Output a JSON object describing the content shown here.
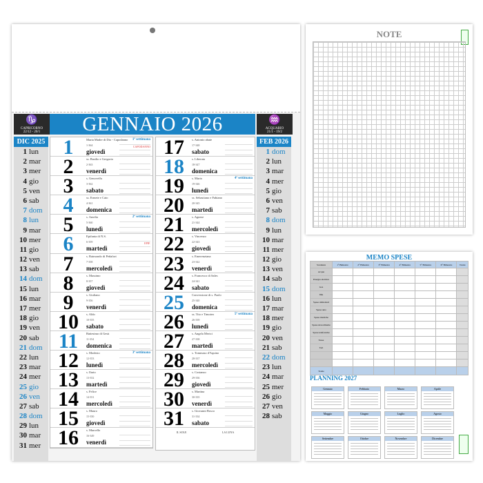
{
  "calendar": {
    "title": "GENNAIO 2026",
    "accent": "#1b84c6",
    "zodiac_left": {
      "sign": "CAPRICORNO",
      "dates": "22/12 - 20/1",
      "icon": "capricorn-icon"
    },
    "zodiac_right": {
      "sign": "ACQUARIO",
      "dates": "21/1 - 19/2",
      "icon": "aquarius-icon"
    },
    "prev_month": {
      "label": "DIC 2025",
      "days": [
        [
          "1",
          "lun",
          false
        ],
        [
          "2",
          "mar",
          false
        ],
        [
          "3",
          "mer",
          false
        ],
        [
          "4",
          "gio",
          false
        ],
        [
          "5",
          "ven",
          false
        ],
        [
          "6",
          "sab",
          false
        ],
        [
          "7",
          "dom",
          true
        ],
        [
          "8",
          "lun",
          true
        ],
        [
          "9",
          "mar",
          false
        ],
        [
          "10",
          "mer",
          false
        ],
        [
          "11",
          "gio",
          false
        ],
        [
          "12",
          "ven",
          false
        ],
        [
          "13",
          "sab",
          false
        ],
        [
          "14",
          "dom",
          true
        ],
        [
          "15",
          "lun",
          false
        ],
        [
          "16",
          "mar",
          false
        ],
        [
          "17",
          "mer",
          false
        ],
        [
          "18",
          "gio",
          false
        ],
        [
          "19",
          "ven",
          false
        ],
        [
          "20",
          "sab",
          false
        ],
        [
          "21",
          "dom",
          true
        ],
        [
          "22",
          "lun",
          false
        ],
        [
          "23",
          "mar",
          false
        ],
        [
          "24",
          "mer",
          false
        ],
        [
          "25",
          "gio",
          true
        ],
        [
          "26",
          "ven",
          true
        ],
        [
          "27",
          "sab",
          false
        ],
        [
          "28",
          "dom",
          true
        ],
        [
          "29",
          "lun",
          false
        ],
        [
          "30",
          "mar",
          false
        ],
        [
          "31",
          "mer",
          false
        ]
      ]
    },
    "next_month": {
      "label": "FEB 2026",
      "days": [
        [
          "1",
          "dom",
          true
        ],
        [
          "2",
          "lun",
          false
        ],
        [
          "3",
          "mar",
          false
        ],
        [
          "4",
          "mer",
          false
        ],
        [
          "5",
          "gio",
          false
        ],
        [
          "6",
          "ven",
          false
        ],
        [
          "7",
          "sab",
          false
        ],
        [
          "8",
          "dom",
          true
        ],
        [
          "9",
          "lun",
          false
        ],
        [
          "10",
          "mar",
          false
        ],
        [
          "11",
          "mer",
          false
        ],
        [
          "12",
          "gio",
          false
        ],
        [
          "13",
          "ven",
          false
        ],
        [
          "14",
          "sab",
          false
        ],
        [
          "15",
          "dom",
          true
        ],
        [
          "16",
          "lun",
          false
        ],
        [
          "17",
          "mar",
          false
        ],
        [
          "18",
          "mer",
          false
        ],
        [
          "19",
          "gio",
          false
        ],
        [
          "20",
          "ven",
          false
        ],
        [
          "21",
          "sab",
          false
        ],
        [
          "22",
          "dom",
          true
        ],
        [
          "23",
          "lun",
          false
        ],
        [
          "24",
          "mar",
          false
        ],
        [
          "25",
          "mer",
          false
        ],
        [
          "26",
          "gio",
          false
        ],
        [
          "27",
          "ven",
          false
        ],
        [
          "28",
          "sab",
          false
        ]
      ]
    },
    "days": [
      {
        "n": "1",
        "wd": "giovedì",
        "saint": "Maria Madre di Dio - Capodanno",
        "yd": "1-364",
        "blue": true,
        "week": "1ª settimana",
        "hol": "CAPODANNO"
      },
      {
        "n": "2",
        "wd": "venerdì",
        "saint": "ss. Basilio e Gregorio",
        "yd": "2-363"
      },
      {
        "n": "3",
        "wd": "sabato",
        "saint": "s. Genoveffa",
        "yd": "3-362"
      },
      {
        "n": "4",
        "wd": "domenica",
        "saint": "ss. Ermete e Caio",
        "yd": "4-361",
        "blue": true
      },
      {
        "n": "5",
        "wd": "lunedì",
        "saint": "s. Amelia",
        "yd": "5-360",
        "week": "2ª settimana"
      },
      {
        "n": "6",
        "wd": "martedì",
        "saint": "Epifania di N.S.",
        "yd": "6-359",
        "blue": true,
        "hol": "EPIF."
      },
      {
        "n": "7",
        "wd": "mercoledì",
        "saint": "s. Raimondo di Peñafort",
        "yd": "7-358"
      },
      {
        "n": "8",
        "wd": "giovedì",
        "saint": "s. Massimo",
        "yd": "8-357"
      },
      {
        "n": "9",
        "wd": "venerdì",
        "saint": "s. Giuliano",
        "yd": "9-356"
      },
      {
        "n": "10",
        "wd": "sabato",
        "saint": "s. Aldo",
        "yd": "10-355"
      },
      {
        "n": "11",
        "wd": "domenica",
        "saint": "Battesimo di Gesù",
        "yd": "11-354",
        "blue": true
      },
      {
        "n": "12",
        "wd": "lunedì",
        "saint": "s. Modesto",
        "yd": "12-353",
        "week": "3ª settimana"
      },
      {
        "n": "13",
        "wd": "martedì",
        "saint": "s. Ilario",
        "yd": "13-352"
      },
      {
        "n": "14",
        "wd": "mercoledì",
        "saint": "s. Felice",
        "yd": "14-351"
      },
      {
        "n": "15",
        "wd": "giovedì",
        "saint": "s. Mauro",
        "yd": "15-350"
      },
      {
        "n": "16",
        "wd": "venerdì",
        "saint": "s. Marcello",
        "yd": "16-349"
      },
      {
        "n": "17",
        "wd": "sabato",
        "saint": "s. Antonio abate",
        "yd": "17-348"
      },
      {
        "n": "18",
        "wd": "domenica",
        "saint": "s. Liberata",
        "yd": "18-347",
        "blue": true
      },
      {
        "n": "19",
        "wd": "lunedì",
        "saint": "s. Mario",
        "yd": "19-346",
        "week": "4ª settimana"
      },
      {
        "n": "20",
        "wd": "martedì",
        "saint": "ss. Sebastiano e Fabiano",
        "yd": "20-345"
      },
      {
        "n": "21",
        "wd": "mercoledì",
        "saint": "s. Agnese",
        "yd": "21-344"
      },
      {
        "n": "22",
        "wd": "giovedì",
        "saint": "s. Vincenzo",
        "yd": "22-343"
      },
      {
        "n": "23",
        "wd": "venerdì",
        "saint": "s. Emerenziana",
        "yd": "23-342"
      },
      {
        "n": "24",
        "wd": "sabato",
        "saint": "s. Francesco di Sales",
        "yd": "24-341"
      },
      {
        "n": "25",
        "wd": "domenica",
        "saint": "Conversione di s. Paolo",
        "yd": "25-340",
        "blue": true
      },
      {
        "n": "26",
        "wd": "lunedì",
        "saint": "ss. Tito e Timoteo",
        "yd": "26-339",
        "week": "5ª settimana"
      },
      {
        "n": "27",
        "wd": "martedì",
        "saint": "s. Angela Merici",
        "yd": "27-338"
      },
      {
        "n": "28",
        "wd": "mercoledì",
        "saint": "s. Tommaso d'Aquino",
        "yd": "28-337"
      },
      {
        "n": "29",
        "wd": "giovedì",
        "saint": "s. Costanzo",
        "yd": "29-336"
      },
      {
        "n": "30",
        "wd": "venerdì",
        "saint": "s. Martina",
        "yd": "30-335"
      },
      {
        "n": "31",
        "wd": "sabato",
        "saint": "s. Giovanni Bosco",
        "yd": "31-334"
      }
    ],
    "sun_label": "IL SOLE",
    "moon_label": "LA LUNA"
  },
  "note": {
    "title": "NOTE"
  },
  "memo": {
    "title": "MEMO SPESE",
    "headers": [
      "Scadenza",
      "1° Bimestre",
      "2° Bimestre",
      "3° Bimestre",
      "4° Bimestre",
      "5° Bimestre",
      "6° Bimestre",
      "Totale"
    ],
    "rows": [
      "Acqua",
      "Energia elettrica",
      "Gas",
      "Imu",
      "Spese alimentari",
      "Spese auto",
      "Spese mediche",
      "Spese straordinarie",
      "Spese telefoniche",
      "Tasse",
      "Tari",
      "",
      ""
    ],
    "total": "Totale"
  },
  "planning": {
    "title": "PLANNING 2027",
    "months": [
      "Gennaio",
      "Febbraio",
      "Marzo",
      "Aprile",
      "Maggio",
      "Giugno",
      "Luglio",
      "Agosto",
      "Settembre",
      "Ottobre",
      "Novembre",
      "Dicembre"
    ]
  }
}
